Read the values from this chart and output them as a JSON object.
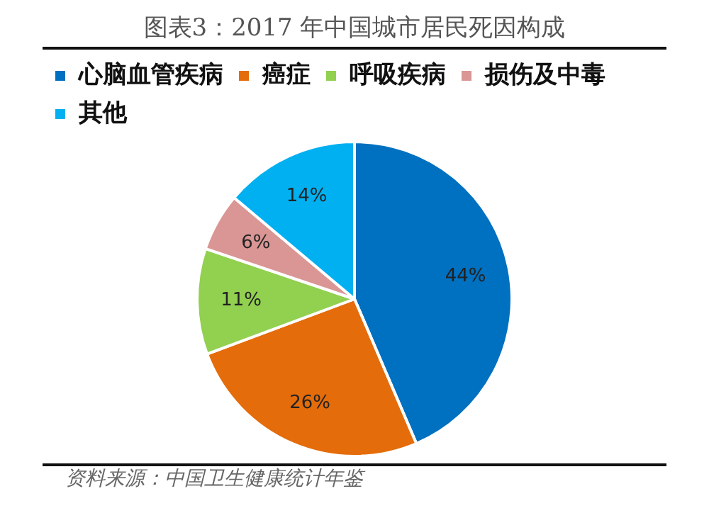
{
  "chart_data": {
    "type": "pie",
    "title": "图表3：2017 年中国城市居民死因构成",
    "categories": [
      "心脑血管疾病",
      "癌症",
      "呼吸疾病",
      "损伤及中毒",
      "其他"
    ],
    "values": [
      44,
      26,
      11,
      6,
      14
    ],
    "value_labels": [
      "44%",
      "26%",
      "11%",
      "6%",
      "14%"
    ],
    "colors": [
      "#0070c0",
      "#e46c0a",
      "#92d050",
      "#d99694",
      "#00b0f0"
    ],
    "legend": "top",
    "annotations": [
      "资料来源：中国卫生健康统计年鉴"
    ]
  }
}
